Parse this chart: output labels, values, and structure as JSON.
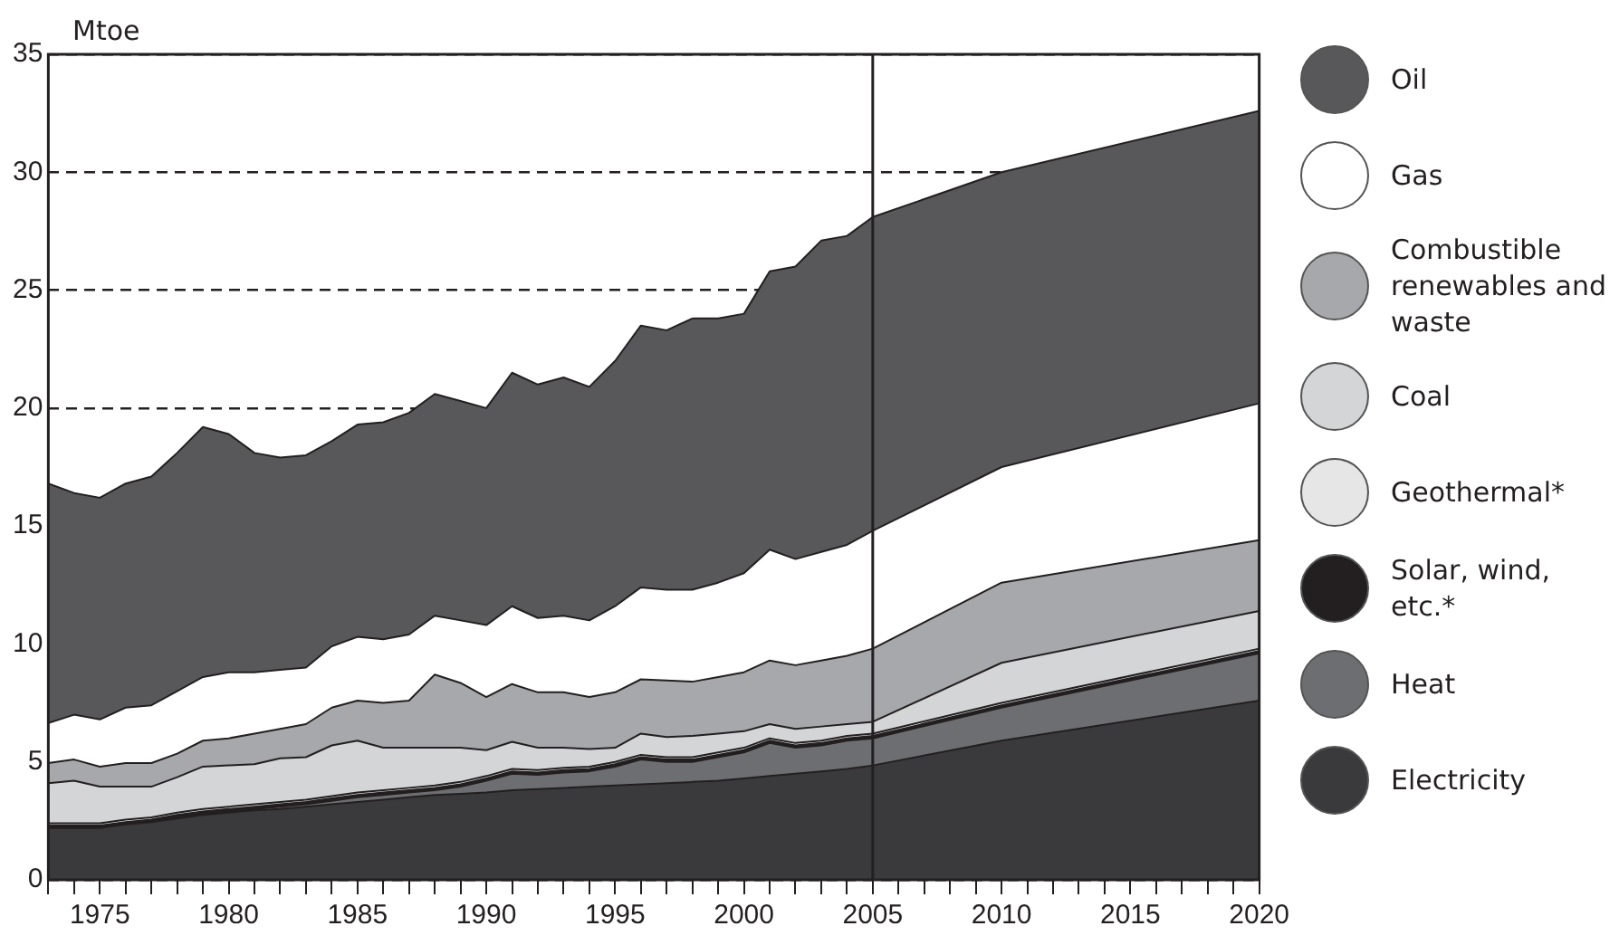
{
  "chart_data": {
    "type": "area",
    "stacked": true,
    "ylabel": "Mtoe",
    "x": [
      1973,
      1974,
      1975,
      1976,
      1977,
      1978,
      1979,
      1980,
      1981,
      1982,
      1983,
      1984,
      1985,
      1986,
      1987,
      1988,
      1989,
      1990,
      1991,
      1992,
      1993,
      1994,
      1995,
      1996,
      1997,
      1998,
      1999,
      2000,
      2001,
      2002,
      2003,
      2004,
      2005,
      2010,
      2020
    ],
    "series": [
      {
        "name": "Electricity",
        "color": "#3a3a3c",
        "values": [
          2.2,
          2.2,
          2.2,
          2.35,
          2.45,
          2.6,
          2.75,
          2.85,
          2.95,
          3.0,
          3.1,
          3.2,
          3.3,
          3.4,
          3.5,
          3.6,
          3.65,
          3.7,
          3.8,
          3.85,
          3.9,
          3.95,
          4.0,
          4.05,
          4.1,
          4.15,
          4.2,
          4.3,
          4.4,
          4.5,
          4.6,
          4.7,
          4.85,
          5.9,
          7.6
        ]
      },
      {
        "name": "Heat",
        "color": "#6d6e71",
        "values": [
          0,
          0,
          0,
          0,
          0,
          0.05,
          0.05,
          0.05,
          0.05,
          0.1,
          0.1,
          0.15,
          0.2,
          0.2,
          0.2,
          0.2,
          0.3,
          0.5,
          0.7,
          0.6,
          0.65,
          0.65,
          0.8,
          1.05,
          0.9,
          0.85,
          1.0,
          1.1,
          1.4,
          1.1,
          1.1,
          1.2,
          1.15,
          1.4,
          2.0
        ]
      },
      {
        "name": "Solar, wind, etc.*",
        "color": "#231f20",
        "values": [
          0.1,
          0.1,
          0.1,
          0.1,
          0.1,
          0.1,
          0.1,
          0.1,
          0.1,
          0.1,
          0.1,
          0.1,
          0.1,
          0.1,
          0.1,
          0.1,
          0.1,
          0.1,
          0.1,
          0.1,
          0.1,
          0.1,
          0.1,
          0.1,
          0.1,
          0.1,
          0.1,
          0.1,
          0.1,
          0.1,
          0.1,
          0.1,
          0.1,
          0.1,
          0.1
        ]
      },
      {
        "name": "Geothermal*",
        "color": "#e6e6e6",
        "values": [
          0.1,
          0.1,
          0.1,
          0.1,
          0.1,
          0.1,
          0.1,
          0.1,
          0.1,
          0.1,
          0.1,
          0.1,
          0.1,
          0.1,
          0.1,
          0.1,
          0.1,
          0.1,
          0.1,
          0.1,
          0.1,
          0.1,
          0.1,
          0.1,
          0.1,
          0.1,
          0.1,
          0.1,
          0.1,
          0.1,
          0.1,
          0.1,
          0.1,
          0.1,
          0.1
        ]
      },
      {
        "name": "Coal",
        "color": "#d4d5d7",
        "values": [
          1.7,
          1.8,
          1.55,
          1.4,
          1.3,
          1.5,
          1.8,
          1.75,
          1.7,
          1.85,
          1.8,
          2.15,
          2.2,
          1.8,
          1.7,
          1.6,
          1.45,
          1.1,
          1.15,
          0.95,
          0.85,
          0.75,
          0.6,
          0.9,
          0.85,
          0.9,
          0.8,
          0.7,
          0.6,
          0.6,
          0.6,
          0.5,
          0.5,
          1.7,
          1.6
        ]
      },
      {
        "name": "Combustible renewables and waste",
        "color": "#a7a8ab",
        "values": [
          0.85,
          0.9,
          0.85,
          1.0,
          1.0,
          1.0,
          1.1,
          1.15,
          1.3,
          1.25,
          1.4,
          1.6,
          1.7,
          1.9,
          2.0,
          3.1,
          2.75,
          2.25,
          2.45,
          2.35,
          2.35,
          2.2,
          2.35,
          2.3,
          2.4,
          2.3,
          2.4,
          2.5,
          2.7,
          2.7,
          2.8,
          2.9,
          3.1,
          3.4,
          3.0
        ]
      },
      {
        "name": "Gas",
        "color": "#ffffff",
        "values": [
          1.7,
          1.9,
          2.0,
          2.35,
          2.45,
          2.65,
          2.7,
          2.8,
          2.6,
          2.5,
          2.4,
          2.6,
          2.7,
          2.7,
          2.8,
          2.5,
          2.65,
          3.05,
          3.3,
          3.15,
          3.25,
          3.25,
          3.65,
          3.9,
          3.85,
          3.9,
          4.0,
          4.2,
          4.7,
          4.5,
          4.6,
          4.7,
          5.0,
          4.9,
          5.8
        ]
      },
      {
        "name": "Oil",
        "color": "#58585a",
        "values": [
          10.15,
          9.4,
          9.4,
          9.5,
          9.7,
          10.1,
          10.6,
          10.1,
          9.3,
          9.0,
          9.0,
          8.7,
          9.0,
          9.2,
          9.4,
          9.4,
          9.3,
          9.2,
          9.9,
          9.9,
          10.1,
          9.9,
          10.4,
          11.1,
          11.0,
          11.5,
          11.2,
          11.0,
          11.8,
          12.4,
          13.2,
          13.1,
          13.3,
          12.5,
          12.4
        ]
      }
    ],
    "xlim": [
      1973,
      2020
    ],
    "xticks": [
      {
        "value": 1973,
        "label": null
      },
      {
        "value": 1974,
        "label": null
      },
      1975,
      {
        "value": 1976,
        "label": null
      },
      {
        "value": 1977,
        "label": null
      },
      {
        "value": 1978,
        "label": null
      },
      {
        "value": 1979,
        "label": null
      },
      1980,
      {
        "value": 1981,
        "label": null
      },
      {
        "value": 1982,
        "label": null
      },
      {
        "value": 1983,
        "label": null
      },
      {
        "value": 1984,
        "label": null
      },
      1985,
      {
        "value": 1986,
        "label": null
      },
      {
        "value": 1987,
        "label": null
      },
      {
        "value": 1988,
        "label": null
      },
      {
        "value": 1989,
        "label": null
      },
      1990,
      {
        "value": 1991,
        "label": null
      },
      {
        "value": 1992,
        "label": null
      },
      {
        "value": 1993,
        "label": null
      },
      {
        "value": 1994,
        "label": null
      },
      1995,
      {
        "value": 1996,
        "label": null
      },
      {
        "value": 1997,
        "label": null
      },
      {
        "value": 1998,
        "label": null
      },
      {
        "value": 1999,
        "label": null
      },
      2000,
      {
        "value": 2001,
        "label": null
      },
      {
        "value": 2002,
        "label": null
      },
      {
        "value": 2003,
        "label": null
      },
      {
        "value": 2004,
        "label": null
      },
      2005,
      {
        "value": 2006,
        "label": null
      },
      {
        "value": 2007,
        "label": null
      },
      {
        "value": 2008,
        "label": null
      },
      {
        "value": 2009,
        "label": null
      },
      2010,
      {
        "value": 2011,
        "label": null
      },
      {
        "value": 2012,
        "label": null
      },
      {
        "value": 2013,
        "label": null
      },
      {
        "value": 2014,
        "label": null
      },
      2015,
      {
        "value": 2016,
        "label": null
      },
      {
        "value": 2017,
        "label": null
      },
      {
        "value": 2018,
        "label": null
      },
      {
        "value": 2019,
        "label": null
      },
      2020
    ],
    "ylim": [
      0,
      35
    ],
    "yticks": [
      0,
      5,
      10,
      15,
      20,
      25,
      30,
      35
    ],
    "grid": "y",
    "legend": "right",
    "ref_lines": [
      {
        "axis": "x",
        "value": 2005,
        "color": "#231f20"
      }
    ]
  }
}
